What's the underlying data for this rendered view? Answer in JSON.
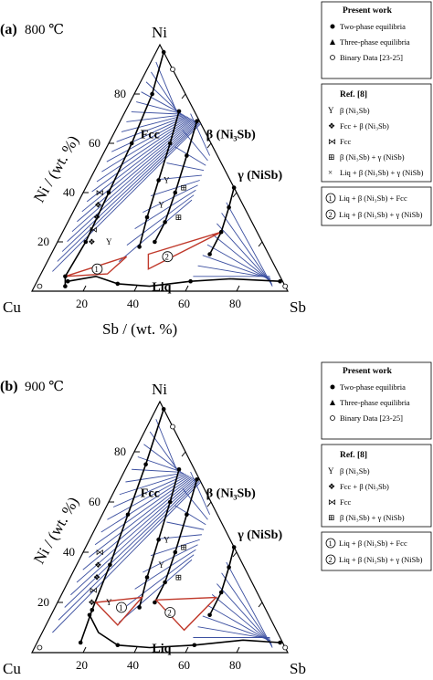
{
  "panels": [
    {
      "id": "a",
      "label": "(a)",
      "temperature": "800 ℃",
      "vertex_top": "Ni",
      "vertex_left": "Cu",
      "vertex_right": "Sb",
      "left_axis_title": "Ni / (wt. %)",
      "bottom_axis_title": "Sb / (wt. %)",
      "left_ticks": [
        "20",
        "40",
        "60",
        "80"
      ],
      "bottom_ticks": [
        "20",
        "40",
        "60",
        "80"
      ],
      "phase_fcc": "Fcc",
      "phase_beta": "β (Ni₃Sb)",
      "phase_gamma": "γ (NiSb)",
      "phase_liq": "Liq",
      "legend": {
        "present_work": "Present work",
        "items": [
          "Two-phase equilibria",
          "Three-phase equilibria",
          "Binary Data [23-25]"
        ],
        "ref_title": "Ref. [8]",
        "ref_items": [
          {
            "symbol": "Ү",
            "label": "β (Ni₃Sb)"
          },
          {
            "symbol": "❖",
            "label": "Fcc + β (Ni₃Sb)"
          },
          {
            "symbol": "⋈",
            "label": "Fcc"
          },
          {
            "symbol": "⊞",
            "label": "β (Ni₃Sb) + γ (NiSb)"
          },
          {
            "symbol": "×",
            "label": "Liq + β (Ni₃Sb) + γ (NiSb)"
          }
        ],
        "invariants": [
          {
            "num": "1",
            "label": "Liq + β (Ni₃Sb) + Fcc"
          },
          {
            "num": "2",
            "label": "Liq + β (Ni₃Sb) + γ (NiSb)"
          }
        ]
      }
    },
    {
      "id": "b",
      "label": "(b)",
      "temperature": "900 ℃",
      "vertex_top": "Ni",
      "vertex_left": "Cu",
      "vertex_right": "Sb",
      "left_axis_title": "Ni / (wt. %)",
      "bottom_axis_title": "Sb / (wt. %)",
      "left_ticks": [
        "20",
        "40",
        "60",
        "80"
      ],
      "bottom_ticks": [
        "20",
        "40",
        "60",
        "80"
      ],
      "phase_fcc": "Fcc",
      "phase_beta": "β (Ni₃Sb)",
      "phase_gamma": "γ (NiSb)",
      "phase_liq": "Liq",
      "legend": {
        "present_work": "Present work",
        "items": [
          "Two-phase equilibria",
          "Three-phase equilibria",
          "Binary Data [23-25]"
        ],
        "ref_title": "Ref. [8]",
        "ref_items": [
          {
            "symbol": "Ү",
            "label": "β (Ni₃Sb)"
          },
          {
            "symbol": "❖",
            "label": "Fcc + β (Ni₃Sb)"
          },
          {
            "symbol": "⋈",
            "label": "Fcc"
          },
          {
            "symbol": "⊞",
            "label": "β (Ni₃Sb) + γ (NiSb)"
          }
        ],
        "invariants": [
          {
            "num": "1",
            "label": "Liq + β (Ni₃Sb) + Fcc"
          },
          {
            "num": "2",
            "label": "Liq + β (Ni₃Sb) + γ (NiSb)"
          }
        ]
      }
    }
  ]
}
